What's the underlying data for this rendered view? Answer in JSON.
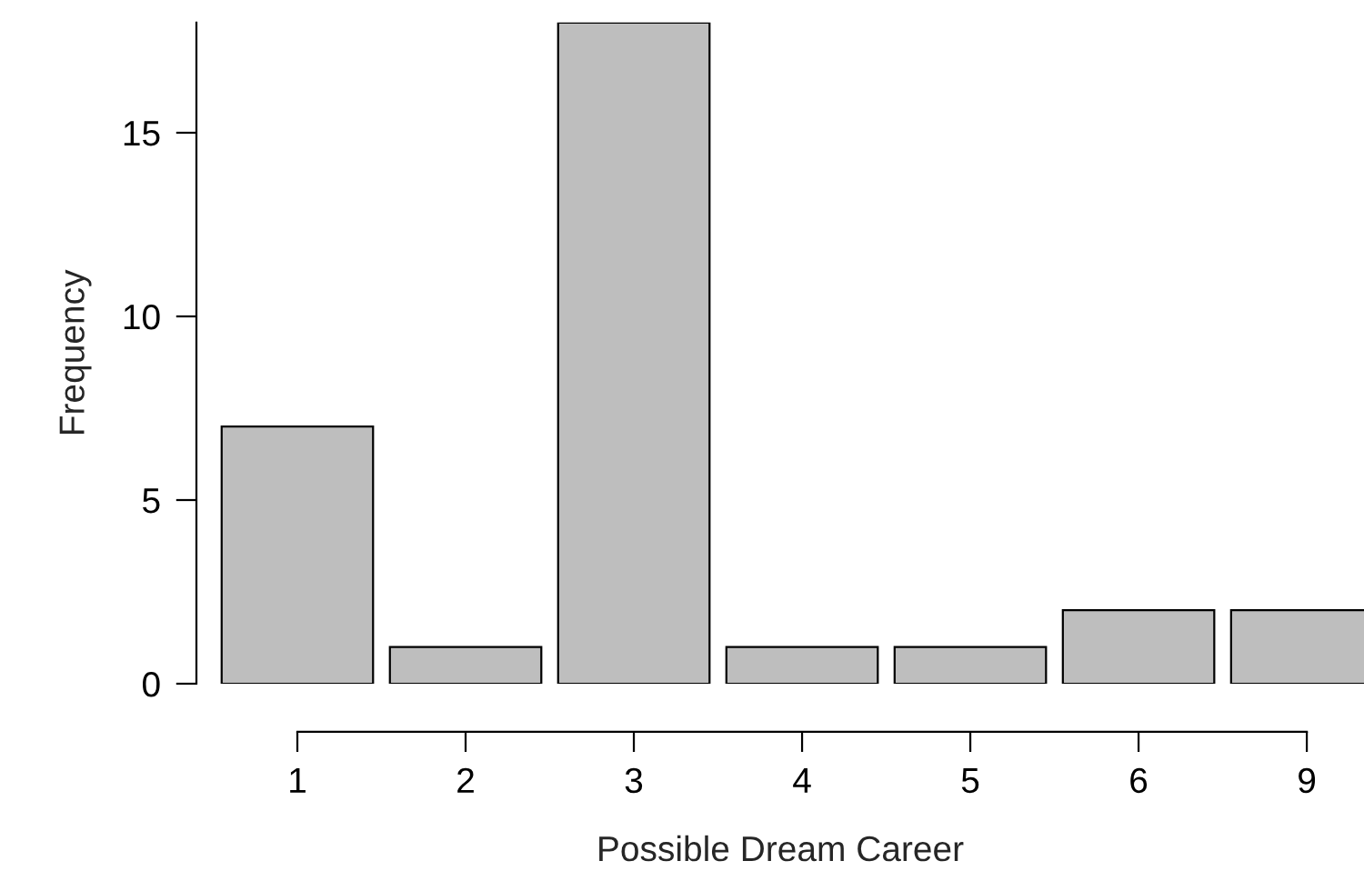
{
  "chart_data": {
    "type": "bar",
    "xlabel": "Possible Dream Career",
    "ylabel": "Frequency",
    "categories": [
      "1",
      "2",
      "3",
      "4",
      "5",
      "6",
      "9"
    ],
    "values": [
      7,
      1,
      18,
      1,
      1,
      2,
      2
    ],
    "color": "#bebebe",
    "ylim": [
      0,
      18
    ],
    "yticks": [
      0,
      5,
      10,
      15
    ],
    "grid": false,
    "legend": false
  }
}
